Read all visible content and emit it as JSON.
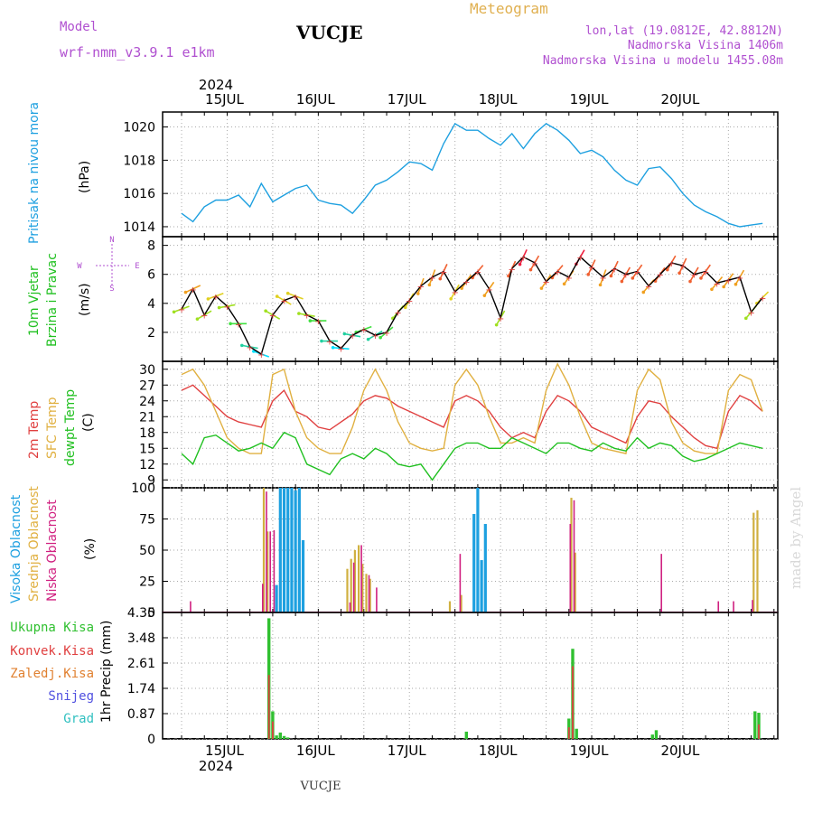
{
  "header": {
    "model_label": "Model",
    "model_name": "wrf-nmm_v3.9.1  e1km",
    "station": "VUCJE",
    "meteogram_label": "Meteogram",
    "lonlat": "lon,lat (19.0812E, 42.8812N)",
    "altitude": "Nadmorska Visina 1406m",
    "model_altitude": "Nadmorska Visina u modelu 1455.08m",
    "year": "2024",
    "footer_station": "VUCJE",
    "watermark": "made by Angel"
  },
  "colors": {
    "pressure": "#1ea0e0",
    "t2m": "#e04040",
    "sfc": "#e0b040",
    "dew": "#20c020",
    "high_cloud": "#1ea0e0",
    "mid_cloud": "#d0b040",
    "low_cloud": "#d02080",
    "total_precip": "#30c030",
    "conv_precip": "#e04040",
    "frozen_precip": "#e08030",
    "snow": "#5050e0",
    "hail": "#30c0c0"
  },
  "chart_data": [
    {
      "type": "line",
      "panel": "pressure",
      "ylabel": "Pritisak na nivou mora",
      "yunit": "(hPa)",
      "ylim": [
        1013.4,
        1020.9
      ],
      "yticks": [
        1014,
        1016,
        1018,
        1020
      ],
      "x_day_labels": [
        "15JUL",
        "16JUL",
        "17JUL",
        "18JUL",
        "19JUL",
        "20JUL"
      ],
      "grid": true,
      "series": [
        {
          "x": [
            0,
            3,
            6,
            9,
            12,
            15,
            18,
            21,
            24,
            27,
            30,
            33,
            36,
            39,
            42,
            45,
            48,
            51,
            54,
            57,
            60,
            63,
            66,
            69,
            72,
            75,
            78,
            81,
            84,
            87,
            90,
            93,
            96,
            99,
            102,
            105,
            108,
            111,
            114,
            117,
            120,
            123,
            126,
            129,
            132,
            135,
            138,
            141,
            144,
            147,
            150,
            153
          ],
          "values": [
            1014.8,
            1014.3,
            1015.2,
            1015.6,
            1015.6,
            1015.9,
            1015.2,
            1016.6,
            1015.5,
            1015.9,
            1016.3,
            1016.5,
            1015.6,
            1015.4,
            1015.3,
            1014.8,
            1015.6,
            1016.5,
            1016.8,
            1017.3,
            1017.9,
            1017.8,
            1017.4,
            1019.0,
            1020.2,
            1019.8,
            1019.8,
            1019.3,
            1018.9,
            1019.6,
            1018.7,
            1019.6,
            1020.2,
            1019.8,
            1019.2,
            1018.4,
            1018.6,
            1018.2,
            1017.4,
            1016.8,
            1016.5,
            1017.5,
            1017.6,
            1016.9,
            1016.0,
            1015.3,
            1014.9,
            1014.6,
            1014.2,
            1014.0,
            1014.1,
            1014.2
          ]
        }
      ]
    },
    {
      "type": "scatter",
      "panel": "wind",
      "ylabel": "10m Vjetar",
      "ylabel2": "Brzina i Pravac",
      "yunit": "(m/s)",
      "compass": [
        "N",
        "W",
        "E",
        "S"
      ],
      "ylim": [
        0,
        8.6
      ],
      "yticks": [
        2,
        4,
        6,
        8
      ],
      "series": [
        {
          "x": [
            0,
            3,
            6,
            9,
            12,
            15,
            18,
            21,
            24,
            27,
            30,
            33,
            36,
            39,
            42,
            45,
            48,
            51,
            54,
            57,
            60,
            63,
            66,
            69,
            72,
            75,
            78,
            81,
            84,
            87,
            90,
            93,
            96,
            99,
            102,
            105,
            108,
            111,
            114,
            117,
            120,
            123,
            126,
            129,
            132,
            135,
            138,
            141,
            144,
            147,
            150,
            153
          ],
          "speed": [
            3.6,
            5.0,
            3.2,
            4.5,
            3.8,
            2.6,
            1.0,
            0.5,
            3.2,
            4.2,
            4.5,
            3.2,
            2.8,
            1.4,
            0.9,
            1.8,
            2.2,
            1.8,
            2.0,
            3.4,
            4.2,
            5.2,
            5.8,
            6.2,
            4.8,
            5.5,
            6.2,
            5.0,
            3.0,
            6.4,
            7.2,
            6.8,
            5.5,
            6.2,
            5.8,
            7.2,
            6.5,
            5.8,
            6.4,
            6.0,
            6.2,
            5.2,
            6.0,
            6.8,
            6.6,
            6.0,
            6.2,
            5.4,
            5.6,
            5.8,
            3.4,
            4.4
          ],
          "direction_deg": [
            250,
            245,
            240,
            250,
            260,
            270,
            280,
            290,
            300,
            300,
            290,
            280,
            270,
            270,
            275,
            280,
            250,
            240,
            230,
            220,
            210,
            200,
            200,
            205,
            210,
            215,
            220,
            215,
            210,
            205,
            205,
            210,
            215,
            220,
            215,
            210,
            205,
            200,
            205,
            210,
            215,
            220,
            215,
            210,
            205,
            210,
            215,
            220,
            215,
            210,
            220,
            225
          ]
        }
      ]
    },
    {
      "type": "line",
      "panel": "temperature",
      "ylabel": "2m Temp",
      "ylabel2": "SFC Temp",
      "ylabel3": "dewpt Temp",
      "yunit": "(C)",
      "ylim": [
        7.5,
        31.5
      ],
      "yticks": [
        9,
        12,
        15,
        18,
        21,
        24,
        27,
        30
      ],
      "series": [
        {
          "key": "t2m",
          "x": [
            0,
            3,
            6,
            9,
            12,
            15,
            18,
            21,
            24,
            27,
            30,
            33,
            36,
            39,
            42,
            45,
            48,
            51,
            54,
            57,
            60,
            63,
            66,
            69,
            72,
            75,
            78,
            81,
            84,
            87,
            90,
            93,
            96,
            99,
            102,
            105,
            108,
            111,
            114,
            117,
            120,
            123,
            126,
            129,
            132,
            135,
            138,
            141,
            144,
            147,
            150,
            153
          ],
          "values": [
            26,
            27,
            25,
            23,
            21,
            20,
            19.5,
            19,
            24,
            26,
            22,
            21,
            19,
            18.5,
            20,
            21.5,
            24,
            25,
            24.5,
            23,
            22,
            21,
            20,
            19,
            24,
            25,
            24,
            22,
            19,
            17,
            18,
            17,
            22,
            25,
            24,
            22,
            19,
            18,
            17,
            16,
            21,
            24,
            23.5,
            21,
            19,
            17,
            15.5,
            15,
            22,
            25,
            24,
            22
          ]
        },
        {
          "key": "sfc",
          "x": [
            0,
            3,
            6,
            9,
            12,
            15,
            18,
            21,
            24,
            27,
            30,
            33,
            36,
            39,
            42,
            45,
            48,
            51,
            54,
            57,
            60,
            63,
            66,
            69,
            72,
            75,
            78,
            81,
            84,
            87,
            90,
            93,
            96,
            99,
            102,
            105,
            108,
            111,
            114,
            117,
            120,
            123,
            126,
            129,
            132,
            135,
            138,
            141,
            144,
            147,
            150,
            153
          ],
          "values": [
            29,
            30,
            27,
            22,
            17,
            15,
            14,
            14,
            29,
            30,
            22,
            17,
            15,
            14,
            14,
            19,
            26,
            30,
            26,
            20,
            16,
            15,
            14.5,
            15,
            27,
            30,
            27,
            21,
            16,
            16,
            17,
            16,
            26,
            31,
            27,
            21,
            16,
            15,
            14.5,
            14,
            26,
            30,
            28,
            20,
            16,
            14.5,
            14,
            14,
            26,
            29,
            28,
            22
          ]
        },
        {
          "key": "dew",
          "x": [
            0,
            3,
            6,
            9,
            12,
            15,
            18,
            21,
            24,
            27,
            30,
            33,
            36,
            39,
            42,
            45,
            48,
            51,
            54,
            57,
            60,
            63,
            66,
            69,
            72,
            75,
            78,
            81,
            84,
            87,
            90,
            93,
            96,
            99,
            102,
            105,
            108,
            111,
            114,
            117,
            120,
            123,
            126,
            129,
            132,
            135,
            138,
            141,
            144,
            147,
            150,
            153
          ],
          "values": [
            14,
            12,
            17,
            17.5,
            16,
            14.5,
            15,
            16,
            15,
            18,
            17,
            12,
            11,
            10,
            13,
            14,
            13,
            15,
            14,
            12,
            11.5,
            12,
            9,
            12,
            15,
            16,
            16,
            15,
            15,
            17,
            16,
            15,
            14,
            16,
            16,
            15,
            14.5,
            16,
            15,
            14.5,
            17,
            15,
            16,
            15.5,
            13.5,
            12.5,
            13,
            14,
            15,
            16,
            15.5,
            15
          ]
        }
      ]
    },
    {
      "type": "bar",
      "panel": "cloud",
      "ylabel": "Visoka Oblacnost",
      "ylabel2": "Srednja Oblacnost",
      "ylabel3": "Niska Oblacnost",
      "yunit": "(%)",
      "ylim": [
        0,
        100
      ],
      "yticks": [
        0,
        25,
        50,
        75,
        100
      ],
      "series": [
        {
          "key": "high_cloud",
          "x": [
            25,
            26,
            27,
            28,
            29,
            30,
            31,
            32,
            33,
            34,
            76,
            77,
            78,
            79,
            80,
            81
          ],
          "values": [
            22,
            100,
            100,
            100,
            100,
            98,
            100,
            58,
            0,
            0,
            0,
            79,
            100,
            42,
            71,
            0
          ]
        },
        {
          "key": "mid_cloud",
          "x": [
            22,
            23,
            24,
            25,
            44,
            45,
            46,
            47,
            48,
            49,
            50,
            51,
            52,
            53,
            54,
            71,
            74,
            75,
            103,
            104,
            105,
            151,
            152
          ],
          "values": [
            100,
            65,
            0,
            0,
            35,
            43,
            50,
            54,
            39,
            31,
            27,
            0,
            0,
            0,
            0,
            9,
            14,
            0,
            92,
            48,
            0,
            80,
            82
          ]
        },
        {
          "key": "low_cloud",
          "x": [
            2,
            21,
            22,
            23,
            24,
            44,
            45,
            47,
            49,
            51,
            73,
            102,
            103,
            126,
            141,
            145,
            150
          ],
          "values": [
            9,
            23,
            97,
            65,
            66,
            8,
            40,
            54,
            30,
            20,
            47,
            71,
            90,
            47,
            9,
            9,
            10
          ]
        }
      ]
    },
    {
      "type": "bar",
      "panel": "precip",
      "ylabel": "1hr Precip (mm)",
      "legend": [
        "Ukupna  Kisa",
        "Konvek.Kisa",
        "Zaledj.Kisa",
        "Snijeg",
        "Grad"
      ],
      "ylim": [
        0,
        4.35
      ],
      "yticks": [
        0,
        0.87,
        1.74,
        2.61,
        3.48,
        4.35
      ],
      "series": [
        {
          "key": "total_precip",
          "x": [
            23,
            24,
            25,
            26,
            27,
            28,
            75,
            102,
            103,
            104,
            124,
            125,
            151,
            152
          ],
          "values": [
            4.15,
            0.95,
            0.12,
            0.22,
            0.1,
            0.05,
            0.25,
            0.7,
            3.1,
            0.35,
            0.15,
            0.3,
            0.95,
            0.9
          ]
        },
        {
          "key": "conv_precip",
          "x": [
            23,
            24,
            102,
            103,
            152
          ],
          "values": [
            2.2,
            0.6,
            0.4,
            2.5,
            0.5
          ]
        }
      ]
    }
  ]
}
